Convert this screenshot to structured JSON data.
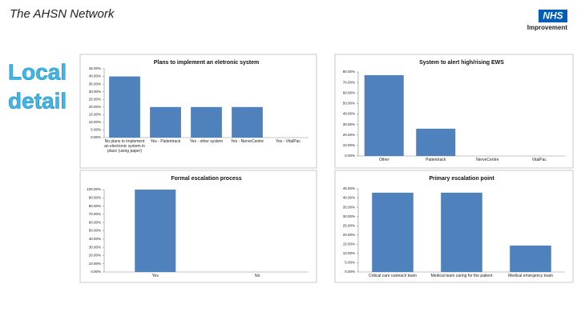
{
  "header": {
    "network": "The AHSN Network",
    "logo": "NHS",
    "logo_sub": "Improvement",
    "side_title": [
      "Local",
      "detail"
    ]
  },
  "chart_data": [
    {
      "type": "bar",
      "title": "Plans to implement an eletronic system",
      "color": "#4f81bd",
      "categories": [
        "No plans to implement an electronic system in place (using paper)",
        "Yes - Patientrack",
        "Yes - other system",
        "Yes - NerveCentre",
        "Yes - VitalPac"
      ],
      "values": [
        40,
        20,
        20,
        20,
        0
      ],
      "ylim": [
        0,
        45
      ],
      "yticks": [
        {
          "value": 0,
          "label": "0.00%"
        },
        {
          "value": 5,
          "label": "5.00%"
        },
        {
          "value": 10,
          "label": "10.00%"
        },
        {
          "value": 15,
          "label": "15.00%"
        },
        {
          "value": 20,
          "label": "20.00%"
        },
        {
          "value": 25,
          "label": "25.00%"
        },
        {
          "value": 30,
          "label": "30.00%"
        },
        {
          "value": 35,
          "label": "35.00%"
        },
        {
          "value": 40,
          "label": "40.00%"
        },
        {
          "value": 45,
          "label": "45.00%"
        }
      ]
    },
    {
      "type": "bar",
      "title": "System to alert high/rising EWS",
      "color": "#4f81bd",
      "categories": [
        "Other",
        "Patientrack",
        "NerveCentre",
        "VitalPac"
      ],
      "values": [
        77,
        26,
        0,
        0
      ],
      "ylim": [
        0,
        80
      ],
      "yticks": [
        {
          "value": 0,
          "label": "0.00%"
        },
        {
          "value": 10,
          "label": "10.00%"
        },
        {
          "value": 20,
          "label": "20.00%"
        },
        {
          "value": 30,
          "label": "30.00%"
        },
        {
          "value": 40,
          "label": "40.00%"
        },
        {
          "value": 50,
          "label": "50.00%"
        },
        {
          "value": 60,
          "label": "60.00%"
        },
        {
          "value": 70,
          "label": "70.00%"
        },
        {
          "value": 80,
          "label": "80.00%"
        }
      ]
    },
    {
      "type": "bar",
      "title": "Formal escalation process",
      "color": "#4f81bd",
      "categories": [
        "Yes",
        "No"
      ],
      "values": [
        100,
        0
      ],
      "ylim": [
        0,
        100
      ],
      "yticks": [
        {
          "value": 0,
          "label": "0.00%"
        },
        {
          "value": 10,
          "label": "10.00%"
        },
        {
          "value": 20,
          "label": "20.00%"
        },
        {
          "value": 30,
          "label": "30.00%"
        },
        {
          "value": 40,
          "label": "40.00%"
        },
        {
          "value": 50,
          "label": "50.00%"
        },
        {
          "value": 60,
          "label": "60.00%"
        },
        {
          "value": 70,
          "label": "70.00%"
        },
        {
          "value": 80,
          "label": "80.00%"
        },
        {
          "value": 90,
          "label": "90.00%"
        },
        {
          "value": 100,
          "label": "100.00%"
        }
      ]
    },
    {
      "type": "bar",
      "title": "Primary escalation point",
      "color": "#4f81bd",
      "categories": [
        "Critical care outreach team",
        "Medical team caring for the patient",
        "Medical emergency team"
      ],
      "values": [
        42.9,
        42.9,
        14.3
      ],
      "ylim": [
        0,
        45
      ],
      "yticks": [
        {
          "value": 0,
          "label": "0.00%"
        },
        {
          "value": 5,
          "label": "5.00%"
        },
        {
          "value": 10,
          "label": "10.00%"
        },
        {
          "value": 15,
          "label": "15.00%"
        },
        {
          "value": 20,
          "label": "20.00%"
        },
        {
          "value": 25,
          "label": "25.00%"
        },
        {
          "value": 30,
          "label": "30.00%"
        },
        {
          "value": 35,
          "label": "35.00%"
        },
        {
          "value": 40,
          "label": "40.00%"
        },
        {
          "value": 45,
          "label": "45.00%"
        }
      ]
    }
  ]
}
